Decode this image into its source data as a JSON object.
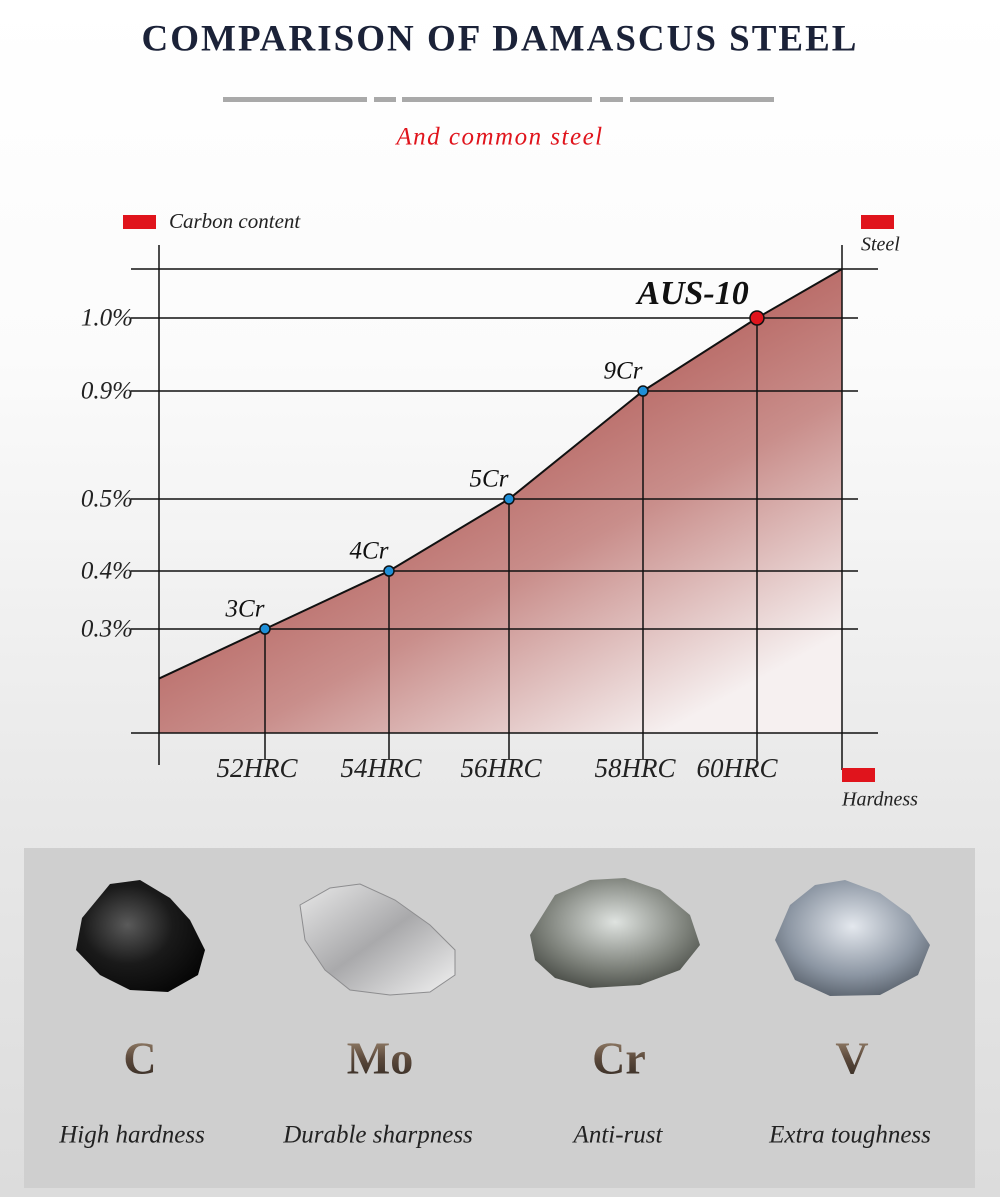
{
  "chart_data": {
    "type": "line",
    "title": "COMPARISON OF DAMASCUS STEEL",
    "subtitle": "And common steel",
    "y_label": "Carbon content",
    "series_label": "Steel",
    "x_label": "Hardness",
    "categories": [
      "52HRC",
      "54HRC",
      "56HRC",
      "58HRC",
      "60HRC"
    ],
    "values": [
      0.3,
      0.4,
      0.5,
      0.9,
      1.0
    ],
    "point_labels": [
      "3Cr",
      "4Cr",
      "5Cr",
      "9Cr",
      "AUS-10"
    ],
    "color": "#1e8fd8",
    "highlight_color": "#e0141c",
    "yticks": [
      {
        "value": 0.3,
        "label": "0.3%"
      },
      {
        "value": 0.4,
        "label": "0.4%"
      },
      {
        "value": 0.5,
        "label": "0.5%"
      },
      {
        "value": 0.9,
        "label": "0.9%"
      },
      {
        "value": 1.0,
        "label": "1.0%"
      }
    ],
    "grid": true
  },
  "elements": [
    {
      "symbol": "C",
      "description": "High hardness"
    },
    {
      "symbol": "Mo",
      "description": "Durable sharpness"
    },
    {
      "symbol": "Cr",
      "description": "Anti-rust"
    },
    {
      "symbol": "V",
      "description": "Extra toughness"
    }
  ]
}
